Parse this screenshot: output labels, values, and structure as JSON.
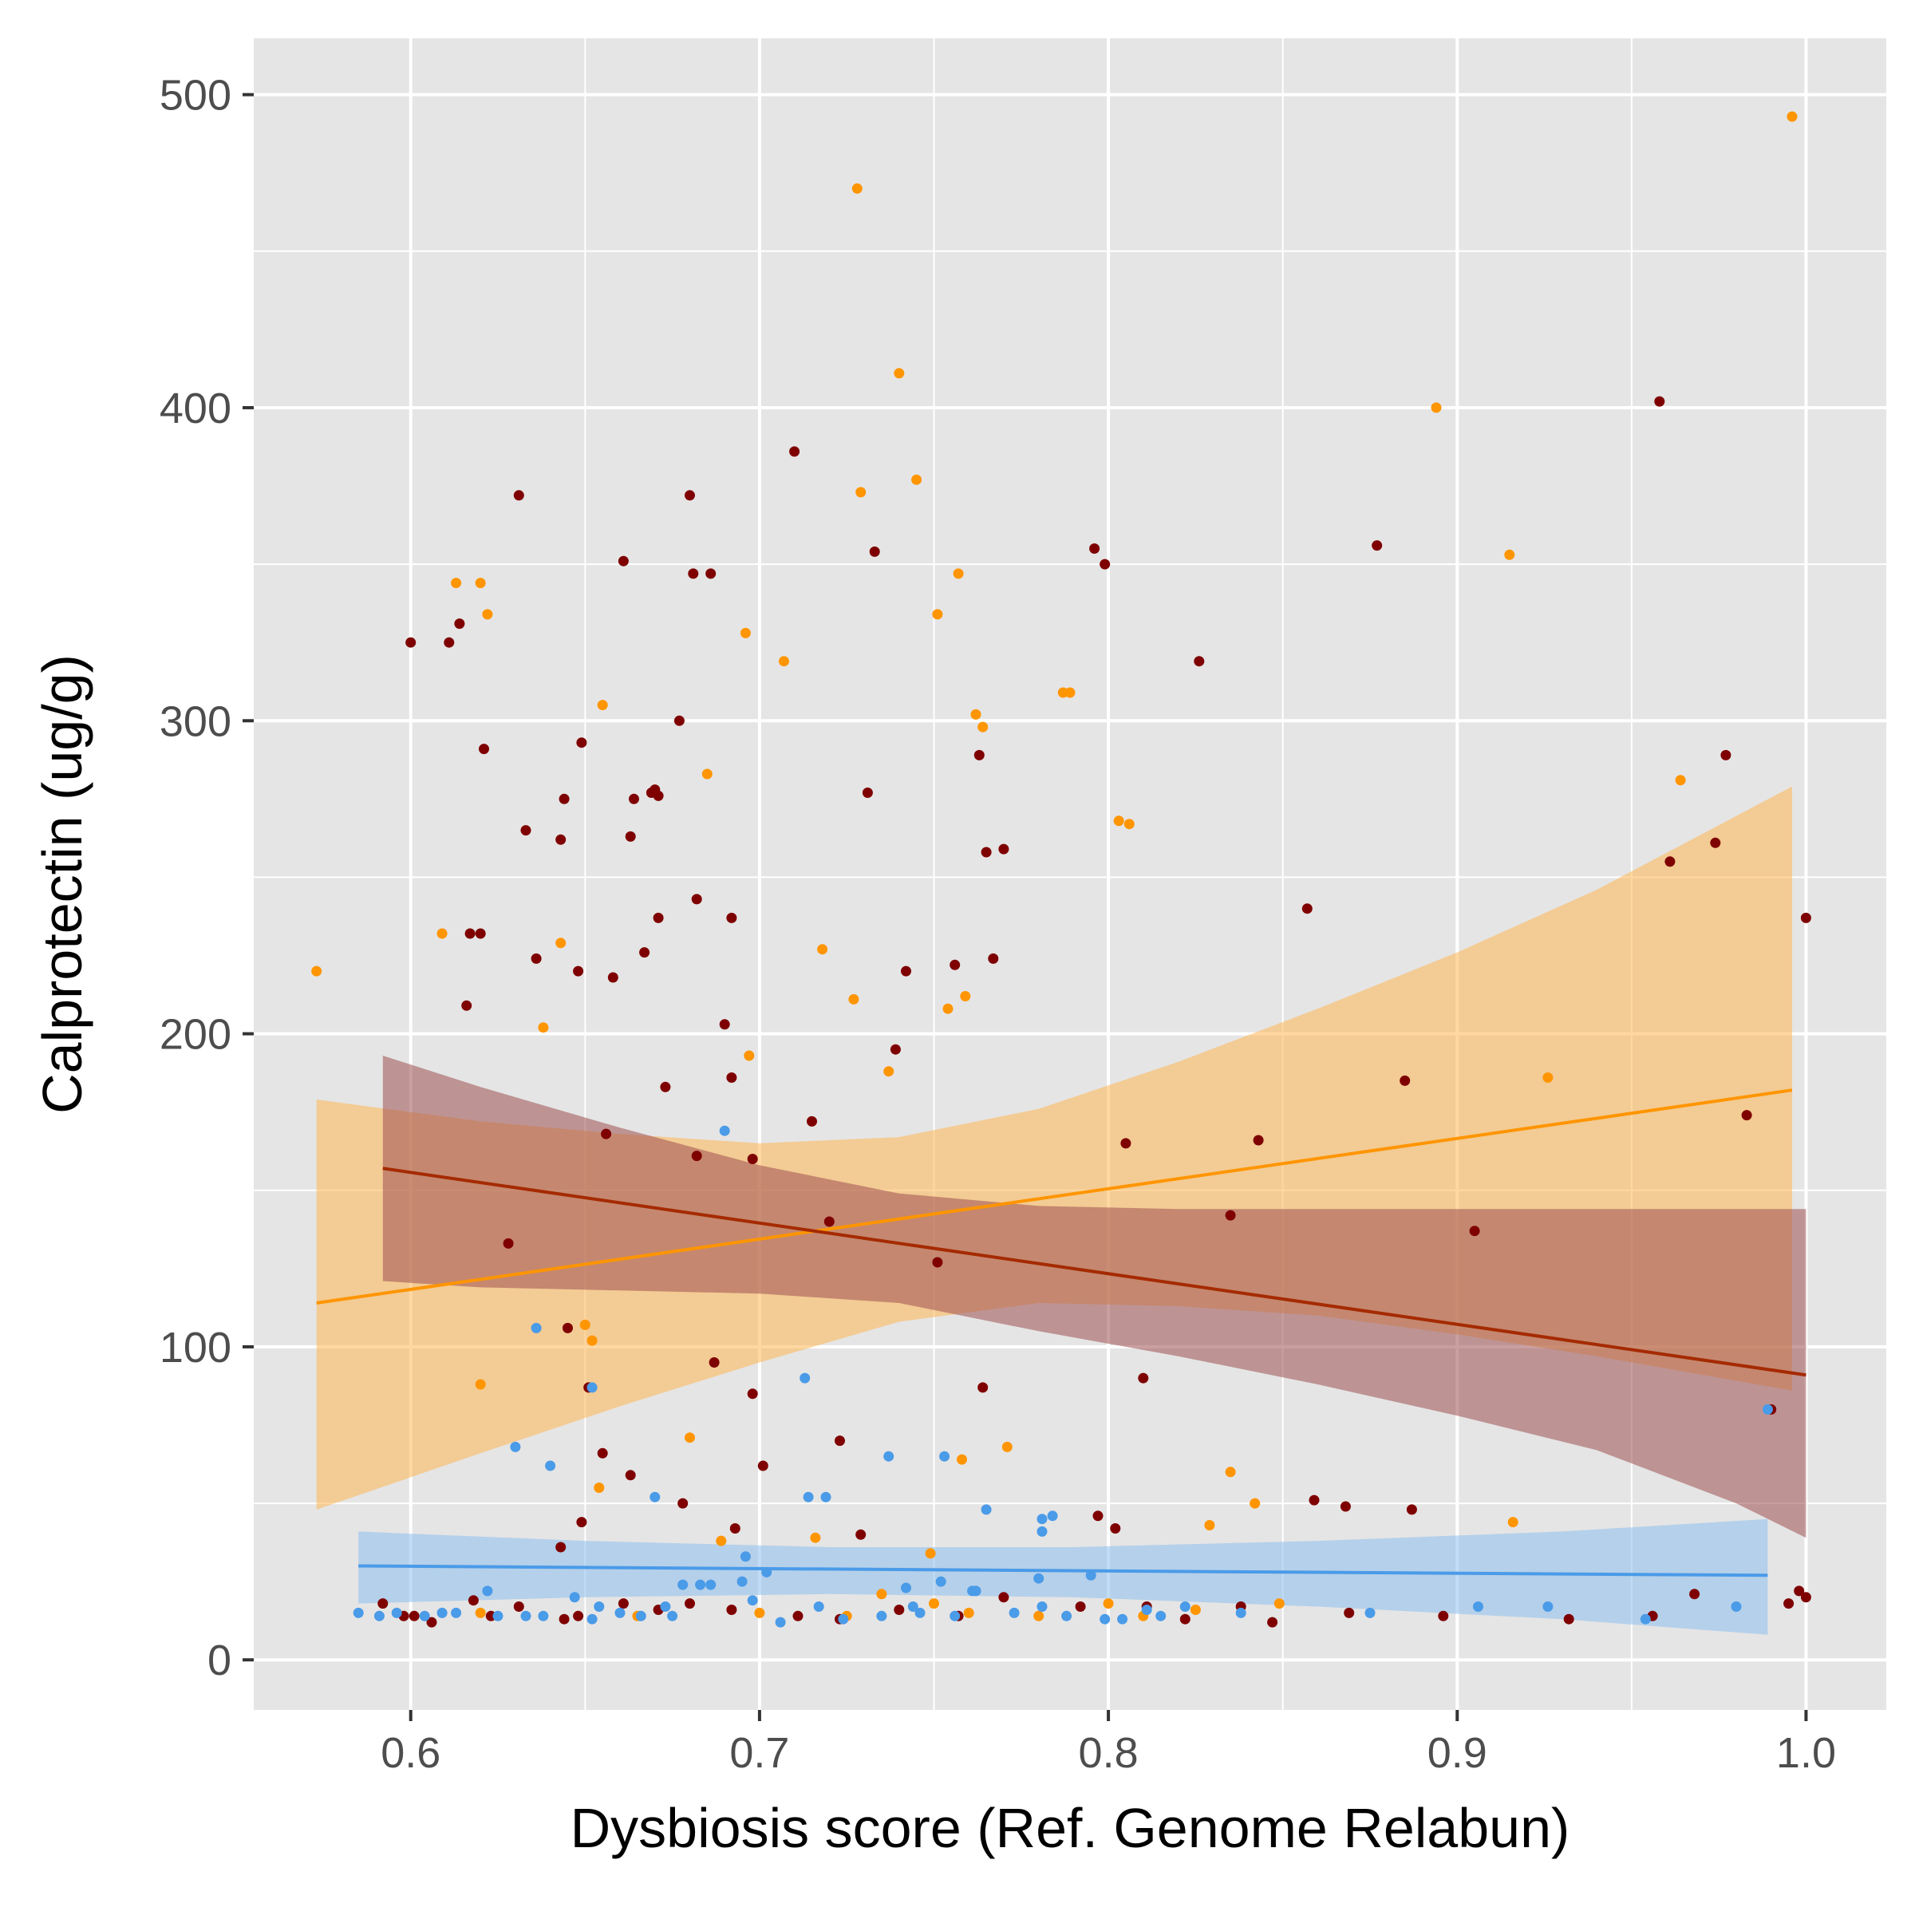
{
  "chart_data": {
    "type": "scatter",
    "title": "",
    "xlabel": "Dysbiosis score (Ref. Genome Relabun)",
    "ylabel": "Calprotectin (ug/g)",
    "xlim": [
      0.555,
      1.023
    ],
    "ylim": [
      -16,
      518
    ],
    "x_ticks": [
      0.6,
      0.7,
      0.8,
      0.9,
      1.0
    ],
    "x_tick_labels": [
      "0.6",
      "0.7",
      "0.8",
      "0.9",
      "1.0"
    ],
    "y_ticks": [
      0,
      100,
      200,
      300,
      400,
      500
    ],
    "y_tick_labels": [
      "0",
      "100",
      "200",
      "300",
      "400",
      "500"
    ],
    "grid": true,
    "legend": "none",
    "colors": {
      "panel": "#e5e5e5",
      "grid": "#ffffff",
      "tick_text": "#4d4d4d",
      "axis_title": "#000000"
    },
    "series": [
      {
        "color": "#ff9500",
        "band_color": "#ffb752",
        "line_color": "#ff9500",
        "fit": {
          "x": [
            0.573,
            0.996
          ],
          "y": [
            114,
            182
          ]
        },
        "band": {
          "x": [
            0.573,
            0.62,
            0.66,
            0.7,
            0.74,
            0.78,
            0.82,
            0.86,
            0.9,
            0.94,
            0.996
          ],
          "upper": [
            179,
            172,
            168,
            165,
            167,
            176,
            191,
            208,
            226,
            246,
            279
          ],
          "lower": [
            48,
            66,
            81,
            95,
            108,
            114,
            113,
            110,
            104,
            97,
            86
          ]
        },
        "points": [
          [
            0.573,
            220
          ],
          [
            0.609,
            232
          ],
          [
            0.613,
            344
          ],
          [
            0.62,
            344
          ],
          [
            0.62,
            88
          ],
          [
            0.622,
            334
          ],
          [
            0.638,
            202
          ],
          [
            0.643,
            229
          ],
          [
            0.65,
            107
          ],
          [
            0.652,
            102
          ],
          [
            0.654,
            55
          ],
          [
            0.655,
            305
          ],
          [
            0.685,
            283
          ],
          [
            0.689,
            38
          ],
          [
            0.696,
            328
          ],
          [
            0.697,
            193
          ],
          [
            0.707,
            319
          ],
          [
            0.716,
            39
          ],
          [
            0.718,
            227
          ],
          [
            0.727,
            211
          ],
          [
            0.728,
            470
          ],
          [
            0.729,
            373
          ],
          [
            0.737,
            188
          ],
          [
            0.74,
            411
          ],
          [
            0.745,
            377
          ],
          [
            0.749,
            34
          ],
          [
            0.75,
            18
          ],
          [
            0.751,
            334
          ],
          [
            0.754,
            208
          ],
          [
            0.757,
            347
          ],
          [
            0.758,
            64
          ],
          [
            0.759,
            212
          ],
          [
            0.762,
            302
          ],
          [
            0.764,
            298
          ],
          [
            0.771,
            68
          ],
          [
            0.787,
            309
          ],
          [
            0.789,
            309
          ],
          [
            0.803,
            268
          ],
          [
            0.806,
            267
          ],
          [
            0.829,
            43
          ],
          [
            0.835,
            60
          ],
          [
            0.842,
            50
          ],
          [
            0.849,
            18
          ],
          [
            0.894,
            400
          ],
          [
            0.915,
            353
          ],
          [
            0.916,
            44
          ],
          [
            0.926,
            186
          ],
          [
            0.964,
            281
          ],
          [
            0.996,
            493
          ],
          [
            0.68,
            71
          ],
          [
            0.62,
            15
          ],
          [
            0.665,
            14
          ],
          [
            0.7,
            15
          ],
          [
            0.725,
            14
          ],
          [
            0.76,
            15
          ],
          [
            0.78,
            14
          ],
          [
            0.8,
            18
          ],
          [
            0.81,
            14
          ],
          [
            0.825,
            16
          ],
          [
            0.735,
            21
          ]
        ]
      },
      {
        "color": "#7f0000",
        "band_color": "#9e5050",
        "line_color": "#a52a00",
        "fit": {
          "x": [
            0.592,
            1.0
          ],
          "y": [
            157,
            91
          ]
        },
        "band": {
          "x": [
            0.592,
            0.62,
            0.66,
            0.7,
            0.74,
            0.78,
            0.82,
            0.86,
            0.9,
            0.94,
            0.98,
            1.0
          ],
          "upper": [
            193,
            183,
            170,
            158,
            149,
            145,
            144,
            144,
            144,
            144,
            144,
            144
          ],
          "lower": [
            121,
            119,
            118,
            117,
            114,
            105,
            97,
            88,
            78,
            67,
            50,
            39
          ]
        },
        "points": [
          [
            0.6,
            325
          ],
          [
            0.611,
            325
          ],
          [
            0.614,
            331
          ],
          [
            0.616,
            209
          ],
          [
            0.617,
            232
          ],
          [
            0.62,
            232
          ],
          [
            0.621,
            291
          ],
          [
            0.631,
            372
          ],
          [
            0.633,
            265
          ],
          [
            0.636,
            224
          ],
          [
            0.643,
            262
          ],
          [
            0.644,
            275
          ],
          [
            0.648,
            220
          ],
          [
            0.649,
            293
          ],
          [
            0.656,
            168
          ],
          [
            0.658,
            218
          ],
          [
            0.661,
            351
          ],
          [
            0.663,
            263
          ],
          [
            0.664,
            275
          ],
          [
            0.667,
            226
          ],
          [
            0.669,
            277
          ],
          [
            0.67,
            278
          ],
          [
            0.671,
            237
          ],
          [
            0.671,
            276
          ],
          [
            0.673,
            183
          ],
          [
            0.677,
            300
          ],
          [
            0.68,
            372
          ],
          [
            0.681,
            347
          ],
          [
            0.682,
            243
          ],
          [
            0.686,
            347
          ],
          [
            0.69,
            203
          ],
          [
            0.692,
            186
          ],
          [
            0.692,
            237
          ],
          [
            0.71,
            386
          ],
          [
            0.715,
            172
          ],
          [
            0.731,
            277
          ],
          [
            0.733,
            354
          ],
          [
            0.739,
            195
          ],
          [
            0.742,
            220
          ],
          [
            0.756,
            222
          ],
          [
            0.763,
            289
          ],
          [
            0.765,
            258
          ],
          [
            0.767,
            224
          ],
          [
            0.77,
            259
          ],
          [
            0.796,
            355
          ],
          [
            0.799,
            350
          ],
          [
            0.826,
            319
          ],
          [
            0.857,
            240
          ],
          [
            0.877,
            356
          ],
          [
            0.958,
            402
          ],
          [
            0.977,
            289
          ],
          [
            1.0,
            237
          ],
          [
            0.974,
            261
          ],
          [
            0.961,
            255
          ],
          [
            0.983,
            174
          ],
          [
            0.885,
            185
          ],
          [
            0.905,
            137
          ],
          [
            0.843,
            166
          ],
          [
            0.805,
            165
          ],
          [
            0.687,
            95
          ],
          [
            0.698,
            85
          ],
          [
            0.701,
            62
          ],
          [
            0.723,
            70
          ],
          [
            0.729,
            40
          ],
          [
            0.764,
            87
          ],
          [
            0.81,
            90
          ],
          [
            0.859,
            51
          ],
          [
            0.868,
            49
          ],
          [
            0.887,
            48
          ],
          [
            0.655,
            66
          ],
          [
            0.663,
            59
          ],
          [
            0.693,
            42
          ],
          [
            0.649,
            44
          ],
          [
            0.643,
            36
          ],
          [
            0.678,
            50
          ],
          [
            0.797,
            46
          ],
          [
            0.802,
            42
          ],
          [
            0.592,
            18
          ],
          [
            0.598,
            14
          ],
          [
            0.601,
            14
          ],
          [
            0.606,
            12
          ],
          [
            0.618,
            19
          ],
          [
            0.623,
            14
          ],
          [
            0.631,
            17
          ],
          [
            0.644,
            13
          ],
          [
            0.648,
            14
          ],
          [
            0.661,
            18
          ],
          [
            0.671,
            16
          ],
          [
            0.68,
            18
          ],
          [
            0.692,
            16
          ],
          [
            0.711,
            14
          ],
          [
            0.723,
            13
          ],
          [
            0.74,
            16
          ],
          [
            0.757,
            14
          ],
          [
            0.77,
            20
          ],
          [
            0.792,
            17
          ],
          [
            0.811,
            17
          ],
          [
            0.822,
            13
          ],
          [
            0.838,
            17
          ],
          [
            0.847,
            12
          ],
          [
            0.869,
            15
          ],
          [
            0.896,
            14
          ],
          [
            0.932,
            13
          ],
          [
            0.956,
            14
          ],
          [
            0.968,
            21
          ],
          [
            0.995,
            18
          ],
          [
            0.998,
            22
          ],
          [
            1.0,
            20
          ],
          [
            0.645,
            106
          ],
          [
            0.628,
            133
          ],
          [
            0.835,
            142
          ],
          [
            0.751,
            127
          ],
          [
            0.682,
            161
          ],
          [
            0.72,
            140
          ],
          [
            0.698,
            160
          ],
          [
            0.651,
            87
          ],
          [
            0.99,
            80
          ]
        ]
      },
      {
        "color": "#4a9be8",
        "band_color": "#8ec0ee",
        "line_color": "#4a9be8",
        "fit": {
          "x": [
            0.585,
            0.989
          ],
          "y": [
            30,
            27
          ]
        },
        "band": {
          "x": [
            0.585,
            0.65,
            0.72,
            0.79,
            0.86,
            0.93,
            0.989
          ],
          "upper": [
            41,
            38,
            36,
            36,
            38,
            41,
            45
          ],
          "lower": [
            18,
            20,
            21,
            20,
            17,
            13,
            8
          ]
        },
        "points": [
          [
            0.585,
            15
          ],
          [
            0.591,
            14
          ],
          [
            0.596,
            15
          ],
          [
            0.604,
            14
          ],
          [
            0.609,
            15
          ],
          [
            0.613,
            15
          ],
          [
            0.622,
            22
          ],
          [
            0.625,
            14
          ],
          [
            0.63,
            68
          ],
          [
            0.633,
            14
          ],
          [
            0.638,
            14
          ],
          [
            0.64,
            62
          ],
          [
            0.647,
            20
          ],
          [
            0.652,
            13
          ],
          [
            0.654,
            17
          ],
          [
            0.66,
            15
          ],
          [
            0.666,
            14
          ],
          [
            0.67,
            52
          ],
          [
            0.673,
            17
          ],
          [
            0.675,
            14
          ],
          [
            0.678,
            24
          ],
          [
            0.683,
            24
          ],
          [
            0.686,
            24
          ],
          [
            0.69,
            169
          ],
          [
            0.695,
            25
          ],
          [
            0.696,
            33
          ],
          [
            0.698,
            19
          ],
          [
            0.702,
            28
          ],
          [
            0.706,
            12
          ],
          [
            0.713,
            90
          ],
          [
            0.714,
            52
          ],
          [
            0.717,
            17
          ],
          [
            0.719,
            52
          ],
          [
            0.724,
            13
          ],
          [
            0.735,
            14
          ],
          [
            0.737,
            65
          ],
          [
            0.742,
            23
          ],
          [
            0.746,
            15
          ],
          [
            0.752,
            25
          ],
          [
            0.753,
            65
          ],
          [
            0.756,
            14
          ],
          [
            0.761,
            22
          ],
          [
            0.765,
            48
          ],
          [
            0.773,
            15
          ],
          [
            0.78,
            26
          ],
          [
            0.781,
            41
          ],
          [
            0.781,
            45
          ],
          [
            0.784,
            46
          ],
          [
            0.788,
            14
          ],
          [
            0.795,
            27
          ],
          [
            0.799,
            13
          ],
          [
            0.804,
            13
          ],
          [
            0.811,
            16
          ],
          [
            0.815,
            14
          ],
          [
            0.822,
            17
          ],
          [
            0.838,
            15
          ],
          [
            0.875,
            15
          ],
          [
            0.906,
            17
          ],
          [
            0.926,
            17
          ],
          [
            0.954,
            13
          ],
          [
            0.98,
            17
          ],
          [
            0.989,
            80
          ],
          [
            0.652,
            87
          ],
          [
            0.636,
            106
          ],
          [
            0.781,
            17
          ],
          [
            0.762,
            22
          ],
          [
            0.744,
            17
          ]
        ]
      }
    ]
  }
}
